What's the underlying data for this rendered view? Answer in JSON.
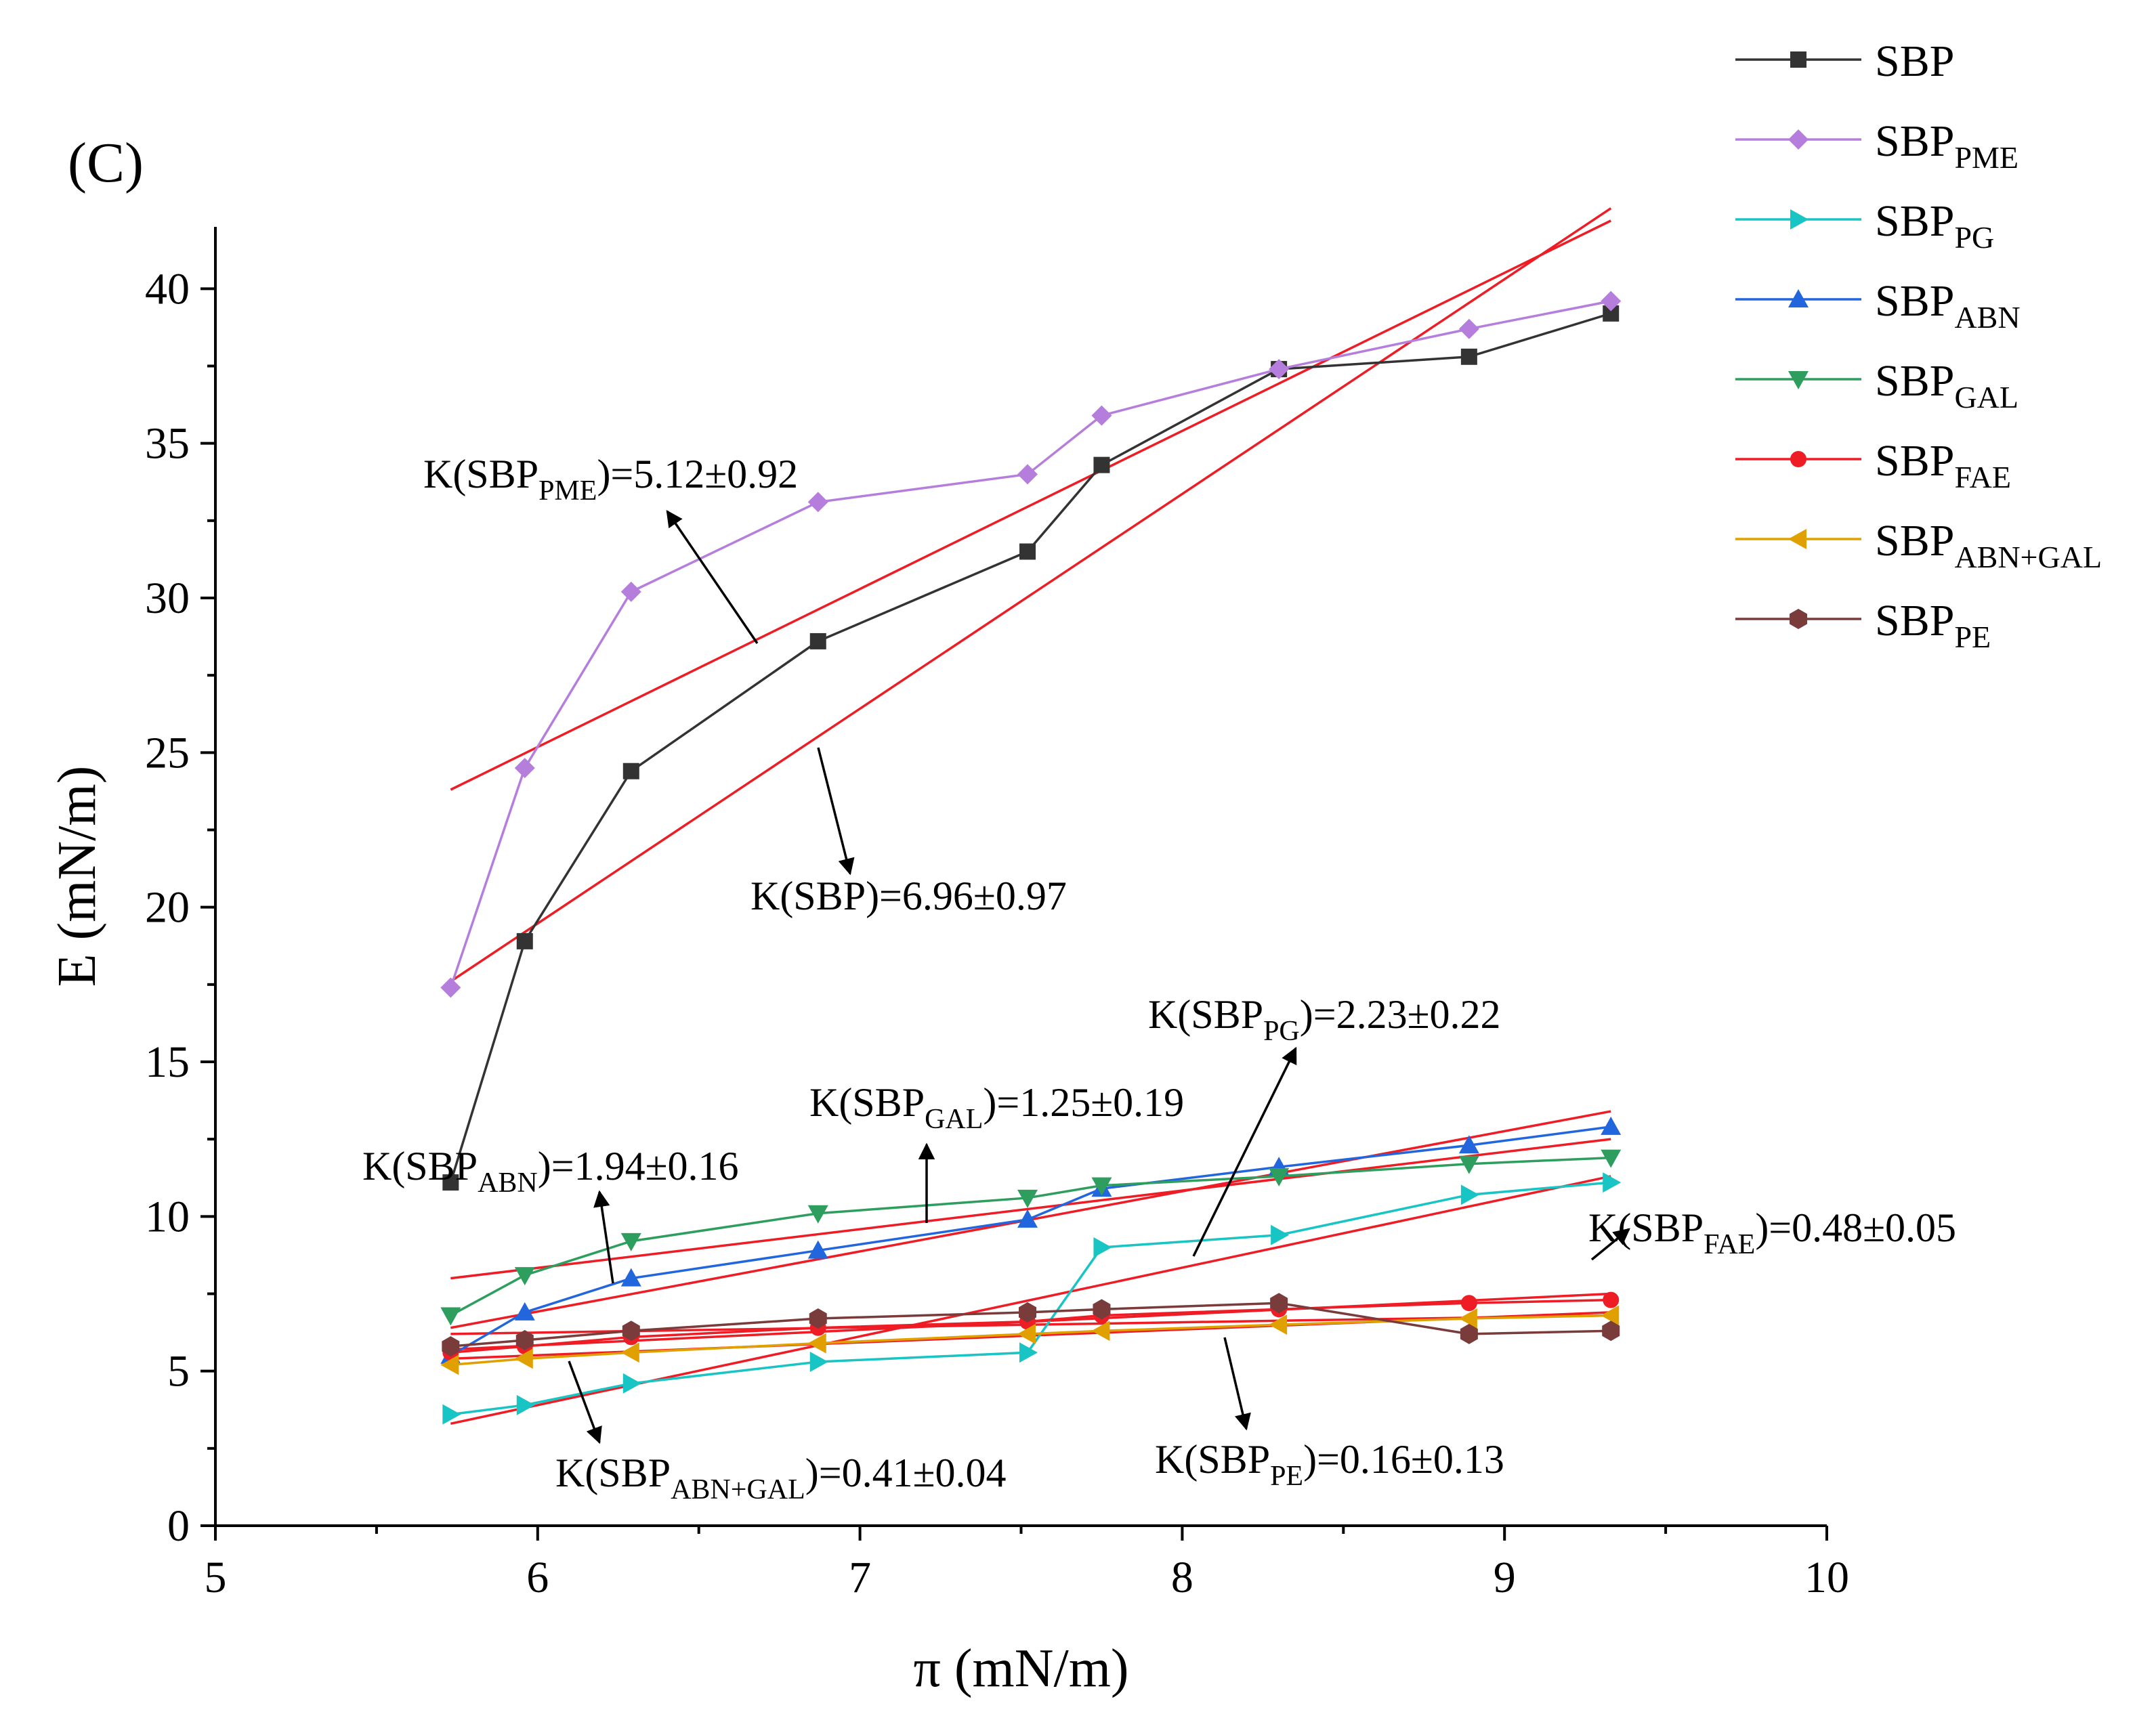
{
  "chart_data": {
    "type": "line",
    "panel_label": "(C)",
    "xlabel": "π (mN/m)",
    "ylabel": "E (mN/m)",
    "xlim": [
      5,
      10
    ],
    "ylim": [
      0,
      42
    ],
    "xticks": [
      5,
      6,
      7,
      8,
      9,
      10
    ],
    "yticks": [
      0,
      5,
      10,
      15,
      20,
      25,
      30,
      35,
      40
    ],
    "x": [
      5.73,
      5.96,
      6.29,
      6.87,
      7.52,
      7.75,
      8.3,
      8.89,
      9.33
    ],
    "series": [
      {
        "name": "SBP",
        "base": "SBP",
        "sub": "",
        "color": "#333333",
        "marker": "square",
        "values": [
          11.1,
          18.9,
          24.4,
          28.6,
          31.5,
          34.3,
          37.4,
          37.8,
          39.2
        ]
      },
      {
        "name": "SBP_PME",
        "base": "SBP",
        "sub": "PME",
        "color": "#b57edc",
        "marker": "diamond",
        "values": [
          17.4,
          24.5,
          30.2,
          33.1,
          34.0,
          35.9,
          37.4,
          38.7,
          39.6
        ]
      },
      {
        "name": "SBP_PG",
        "base": "SBP",
        "sub": "PG",
        "color": "#19c4c4",
        "marker": "triangle-right",
        "values": [
          3.6,
          3.9,
          4.6,
          5.3,
          5.6,
          9.0,
          9.4,
          10.7,
          11.1
        ]
      },
      {
        "name": "SBP_ABN",
        "base": "SBP",
        "sub": "ABN",
        "color": "#2266dd",
        "marker": "triangle-up",
        "values": [
          5.5,
          6.9,
          8.0,
          8.9,
          9.9,
          10.9,
          11.6,
          12.3,
          12.9
        ]
      },
      {
        "name": "SBP_GAL",
        "base": "SBP",
        "sub": "GAL",
        "color": "#2e9e5e",
        "marker": "triangle-down",
        "values": [
          6.8,
          8.1,
          9.2,
          10.1,
          10.6,
          11.0,
          11.3,
          11.7,
          11.9
        ]
      },
      {
        "name": "SBP_FAE",
        "base": "SBP",
        "sub": "FAE",
        "color": "#ee1c24",
        "marker": "circle",
        "values": [
          5.6,
          5.8,
          6.1,
          6.4,
          6.6,
          6.8,
          7.0,
          7.2,
          7.3
        ]
      },
      {
        "name": "SBP_ABN+GAL",
        "base": "SBP",
        "sub": "ABN+GAL",
        "color": "#e0a000",
        "marker": "triangle-left",
        "values": [
          5.2,
          5.4,
          5.6,
          5.9,
          6.2,
          6.3,
          6.5,
          6.7,
          6.8
        ]
      },
      {
        "name": "SBP_PE",
        "base": "SBP",
        "sub": "PE",
        "color": "#7a3b3b",
        "marker": "hexagon",
        "values": [
          5.8,
          6.0,
          6.3,
          6.7,
          6.9,
          7.0,
          7.2,
          6.2,
          6.3
        ]
      }
    ],
    "fits": [
      {
        "name": "fit-SBP",
        "x": [
          5.73,
          9.33
        ],
        "y": [
          17.6,
          42.6
        ]
      },
      {
        "name": "fit-SBP_PME",
        "x": [
          5.73,
          9.33
        ],
        "y": [
          23.8,
          42.2
        ]
      },
      {
        "name": "fit-SBP_PG",
        "x": [
          5.73,
          9.33
        ],
        "y": [
          3.3,
          11.3
        ]
      },
      {
        "name": "fit-SBP_ABN",
        "x": [
          5.73,
          9.33
        ],
        "y": [
          6.4,
          13.4
        ]
      },
      {
        "name": "fit-SBP_GAL",
        "x": [
          5.73,
          9.33
        ],
        "y": [
          8.0,
          12.5
        ]
      },
      {
        "name": "fit-SBP_FAE",
        "x": [
          5.73,
          9.33
        ],
        "y": [
          5.7,
          7.5
        ]
      },
      {
        "name": "fit-SBP_ABN+GAL",
        "x": [
          5.73,
          9.33
        ],
        "y": [
          5.4,
          6.9
        ]
      },
      {
        "name": "fit-SBP_PE",
        "x": [
          5.73,
          9.33
        ],
        "y": [
          6.2,
          6.8
        ]
      }
    ],
    "annotations": [
      {
        "name": "anno-sbp-pme",
        "pre": "K(SBP",
        "sub": "PME",
        "post": ")=5.12±0.92"
      },
      {
        "name": "anno-sbp",
        "pre": "K(SBP)=6.96±0.97",
        "sub": "",
        "post": ""
      },
      {
        "name": "anno-sbp-pg",
        "pre": "K(SBP",
        "sub": "PG",
        "post": ")=2.23±0.22"
      },
      {
        "name": "anno-sbp-gal",
        "pre": "K(SBP",
        "sub": "GAL",
        "post": ")=1.25±0.19"
      },
      {
        "name": "anno-sbp-abn",
        "pre": "K(SBP",
        "sub": "ABN",
        "post": ")=1.94±0.16"
      },
      {
        "name": "anno-sbp-fae",
        "pre": "K(SBP",
        "sub": "FAE",
        "post": ")=0.48±0.05"
      },
      {
        "name": "anno-sbp-abn-gal",
        "pre": "K(SBP",
        "sub": "ABN+GAL",
        "post": ")=0.41±0.04"
      },
      {
        "name": "anno-sbp-pe",
        "pre": "K(SBP",
        "sub": "PE",
        "post": ")=0.16±0.13"
      }
    ],
    "legend_position": "top-right"
  }
}
